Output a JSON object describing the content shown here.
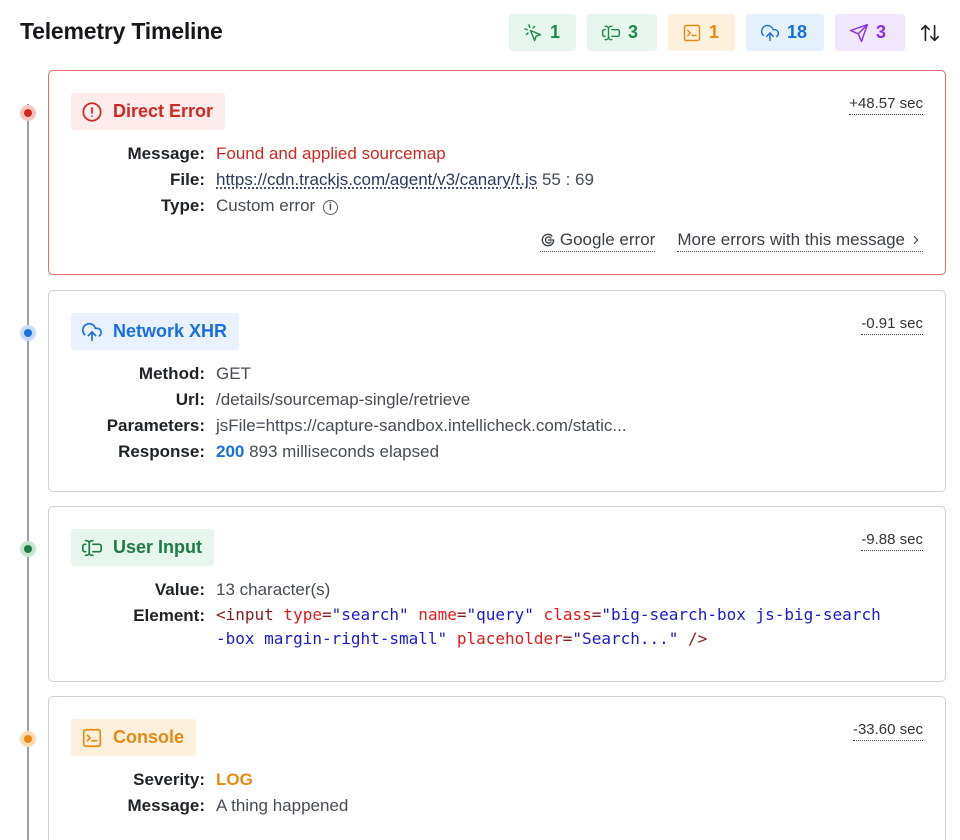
{
  "header": {
    "title": "Telemetry Timeline",
    "counters": {
      "clicks": "1",
      "inputs": "3",
      "console": "1",
      "network": "18",
      "navigation": "3"
    }
  },
  "events": [
    {
      "tag": "Direct Error",
      "time": "+48.57 sec",
      "message_label": "Message:",
      "message": "Found and applied sourcemap",
      "file_label": "File:",
      "file_url": "https://cdn.trackjs.com/agent/v3/canary/t.js",
      "file_pos": " 55 : 69",
      "type_label": "Type:",
      "type": "Custom error",
      "action_google": "Google error",
      "action_more": "More errors with this message"
    },
    {
      "tag": "Network XHR",
      "time": "-0.91 sec",
      "method_label": "Method:",
      "method": "GET",
      "url_label": "Url:",
      "url": "/details/sourcemap-single/retrieve",
      "params_label": "Parameters:",
      "params": "jsFile=https://capture-sandbox.intellicheck.com/static...",
      "response_label": "Response:",
      "status": "200",
      "elapsed": " 893 milliseconds elapsed"
    },
    {
      "tag": "User Input",
      "time": "-9.88 sec",
      "value_label": "Value:",
      "value": "13 character(s)",
      "element_label": "Element:",
      "el_open": "<input",
      "attr_type": " type",
      "val_type": "\"search\"",
      "attr_name": " name",
      "val_name": "\"query\"",
      "attr_class": " class",
      "val_class": "\"big-search-box js-big-search-box margin-right-small\"",
      "attr_placeholder": " placeholder",
      "val_placeholder": "\"Search...\"",
      "el_close": " />",
      "eq": "="
    },
    {
      "tag": "Console",
      "time": "-33.60 sec",
      "severity_label": "Severity:",
      "severity": "LOG",
      "message_label": "Message:",
      "message": "A thing happened"
    }
  ],
  "colors": {
    "error": "#d0281f",
    "network": "#1a6fe0",
    "input": "#1f7a45",
    "console": "#e88a12",
    "navigation": "#8b2fe8"
  }
}
